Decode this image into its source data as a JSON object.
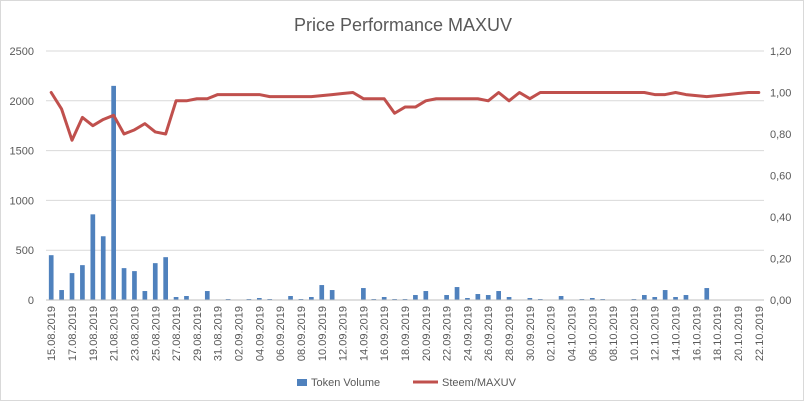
{
  "chart_data": {
    "type": "bar+line",
    "title": "Price Performance MAXUV",
    "categories": [
      "15.08.2019",
      "16.08.2019",
      "17.08.2019",
      "18.08.2019",
      "19.08.2019",
      "20.08.2019",
      "21.08.2019",
      "22.08.2019",
      "23.08.2019",
      "24.08.2019",
      "25.08.2019",
      "26.08.2019",
      "27.08.2019",
      "28.08.2019",
      "29.08.2019",
      "30.08.2019",
      "31.08.2019",
      "01.09.2019",
      "02.09.2019",
      "03.09.2019",
      "04.09.2019",
      "05.09.2019",
      "06.09.2019",
      "07.09.2019",
      "08.09.2019",
      "09.09.2019",
      "10.09.2019",
      "11.09.2019",
      "12.09.2019",
      "13.09.2019",
      "14.09.2019",
      "15.09.2019",
      "16.09.2019",
      "17.09.2019",
      "18.09.2019",
      "19.09.2019",
      "20.09.2019",
      "21.09.2019",
      "22.09.2019",
      "23.09.2019",
      "24.09.2019",
      "25.09.2019",
      "26.09.2019",
      "27.09.2019",
      "28.09.2019",
      "29.09.2019",
      "30.09.2019",
      "01.10.2019",
      "02.10.2019",
      "03.10.2019",
      "04.10.2019",
      "05.10.2019",
      "06.10.2019",
      "07.10.2019",
      "08.10.2019",
      "09.10.2019",
      "10.10.2019",
      "11.10.2019",
      "12.10.2019",
      "13.10.2019",
      "14.10.2019",
      "15.10.2019",
      "16.10.2019",
      "17.10.2019",
      "18.10.2019",
      "19.10.2019",
      "20.10.2019",
      "21.10.2019",
      "22.10.2019"
    ],
    "series": [
      {
        "name": "Token Volume",
        "type": "bar",
        "axis": "left",
        "color": "#4f81bd",
        "values": [
          450,
          100,
          270,
          350,
          860,
          640,
          2150,
          320,
          290,
          90,
          370,
          430,
          30,
          40,
          0,
          90,
          0,
          10,
          0,
          10,
          20,
          10,
          0,
          40,
          10,
          30,
          150,
          100,
          0,
          0,
          120,
          10,
          30,
          10,
          10,
          50,
          90,
          0,
          50,
          130,
          20,
          60,
          50,
          90,
          30,
          0,
          20,
          10,
          0,
          40,
          0,
          10,
          20,
          10,
          0,
          0,
          10,
          50,
          30,
          100,
          30,
          50,
          0,
          120,
          0,
          0,
          0,
          0,
          0
        ]
      },
      {
        "name": "Steem/MAXUV",
        "type": "line",
        "axis": "right",
        "color": "#c0504d",
        "values": [
          1.0,
          0.92,
          0.77,
          0.88,
          0.84,
          0.87,
          0.89,
          0.8,
          0.82,
          0.85,
          0.81,
          0.8,
          0.96,
          0.96,
          0.97,
          0.97,
          0.99,
          0.99,
          0.99,
          0.99,
          0.99,
          0.98,
          0.98,
          0.98,
          0.98,
          0.98,
          0.985,
          0.99,
          0.995,
          1.0,
          0.97,
          0.97,
          0.97,
          0.9,
          0.93,
          0.93,
          0.96,
          0.97,
          0.97,
          0.97,
          0.97,
          0.97,
          0.96,
          1.0,
          0.96,
          1.0,
          0.97,
          1.0,
          1.0,
          1.0,
          1.0,
          1.0,
          1.0,
          1.0,
          1.0,
          1.0,
          1.0,
          1.0,
          0.99,
          0.99,
          1.0,
          0.99,
          0.985,
          0.98,
          0.985,
          0.99,
          0.995,
          1.0,
          1.0
        ]
      }
    ],
    "left_axis": {
      "min": 0,
      "max": 2500,
      "step": 500,
      "ticks": [
        "0",
        "500",
        "1000",
        "1500",
        "2000",
        "2500"
      ]
    },
    "right_axis": {
      "min": 0,
      "max": 1.2,
      "step": 0.2,
      "ticks": [
        "0,00",
        "0,20",
        "0,40",
        "0,60",
        "0,80",
        "1,00",
        "1,20"
      ]
    },
    "x_tick_labels": [
      "15.08.2019",
      "17.08.2019",
      "19.08.2019",
      "21.08.2019",
      "23.08.2019",
      "25.08.2019",
      "27.08.2019",
      "29.08.2019",
      "31.08.2019",
      "02.09.2019",
      "04.09.2019",
      "06.09.2019",
      "08.09.2019",
      "10.09.2019",
      "12.09.2019",
      "14.09.2019",
      "16.09.2019",
      "18.09.2019",
      "20.09.2019",
      "22.09.2019",
      "24.09.2019",
      "26.09.2019",
      "28.09.2019",
      "30.09.2019",
      "02.10.2019",
      "04.10.2019",
      "06.10.2019",
      "08.10.2019",
      "10.10.2019",
      "12.10.2019",
      "14.10.2019",
      "16.10.2019",
      "18.10.2019",
      "20.10.2019",
      "22.10.2019"
    ],
    "grid": true,
    "legend": {
      "position": "bottom",
      "entries": [
        "Token Volume",
        "Steem/MAXUV"
      ]
    }
  }
}
